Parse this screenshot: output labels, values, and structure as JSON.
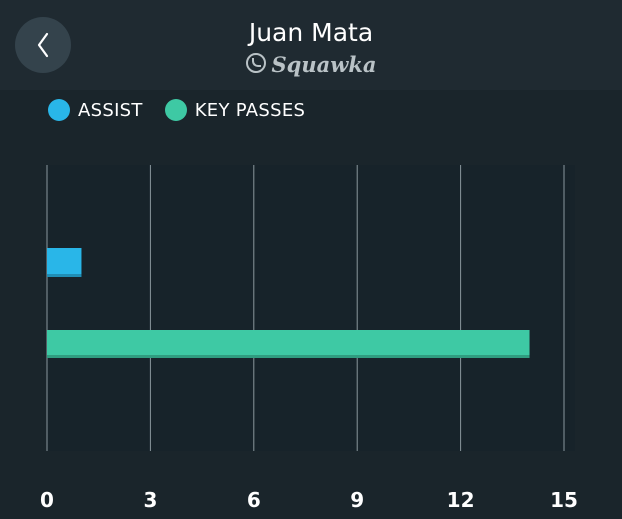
{
  "header": {
    "title": "Juan Mata",
    "brand": "Squawka"
  },
  "icons": {
    "back": "chevron-left-icon",
    "brand": "squawka-logo-icon"
  },
  "legend": [
    {
      "label": "ASSIST",
      "color": "#29b6e8"
    },
    {
      "label": "KEY PASSES",
      "color": "#3ec9a4"
    }
  ],
  "chart_data": {
    "type": "bar",
    "orientation": "horizontal",
    "title": "",
    "xlabel": "",
    "ylabel": "",
    "categories": [
      "ASSIST",
      "KEY PASSES"
    ],
    "values": [
      1,
      14
    ],
    "colors": [
      "#29b6e8",
      "#3ec9a4"
    ],
    "xlim": [
      0,
      15
    ],
    "ticks": [
      0,
      3,
      6,
      9,
      12,
      15
    ],
    "grid": "vertical",
    "legend_position": "top-left"
  }
}
